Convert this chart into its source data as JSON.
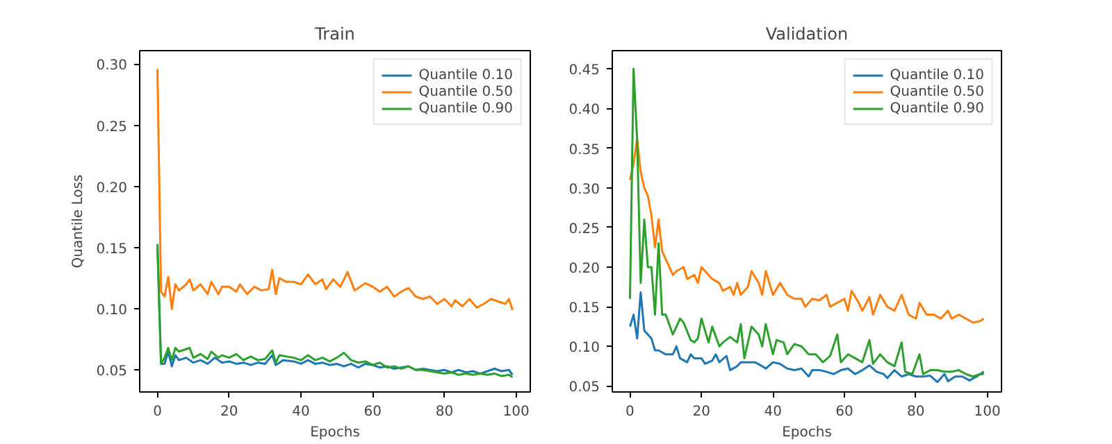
{
  "chart_data": [
    {
      "type": "line",
      "title": "Train",
      "xlabel": "Epochs",
      "ylabel": "Quantile Loss",
      "xlim": [
        -4.95,
        103.95
      ],
      "ylim": [
        0.032,
        0.311
      ],
      "xticks": [
        0,
        20,
        40,
        60,
        80,
        100
      ],
      "yticks": [
        {
          "value": 0.05,
          "label": "0.05"
        },
        {
          "value": 0.1,
          "label": "0.10"
        },
        {
          "value": 0.15,
          "label": "0.15"
        },
        {
          "value": 0.2,
          "label": "0.20"
        },
        {
          "value": 0.25,
          "label": "0.25"
        },
        {
          "value": 0.3,
          "label": "0.30"
        }
      ],
      "grid": false,
      "legend": "top right",
      "series": [
        {
          "name": "Quantile 0.10",
          "color": "#1f77b4",
          "x": [
            0,
            1,
            2,
            3,
            4,
            5,
            6,
            8,
            10,
            12,
            14,
            16,
            18,
            20,
            22,
            24,
            26,
            28,
            30,
            32,
            33,
            35,
            38,
            40,
            42,
            44,
            46,
            48,
            50,
            52,
            54,
            56,
            58,
            60,
            62,
            64,
            66,
            68,
            70,
            72,
            74,
            76,
            78,
            80,
            82,
            84,
            86,
            88,
            90,
            92,
            94,
            96,
            98,
            99
          ],
          "values": [
            0.15,
            0.055,
            0.055,
            0.065,
            0.053,
            0.062,
            0.058,
            0.06,
            0.056,
            0.058,
            0.055,
            0.06,
            0.056,
            0.057,
            0.055,
            0.056,
            0.054,
            0.056,
            0.055,
            0.062,
            0.054,
            0.058,
            0.057,
            0.055,
            0.058,
            0.055,
            0.056,
            0.054,
            0.055,
            0.053,
            0.055,
            0.052,
            0.055,
            0.054,
            0.052,
            0.053,
            0.051,
            0.052,
            0.053,
            0.05,
            0.051,
            0.05,
            0.049,
            0.05,
            0.048,
            0.05,
            0.048,
            0.049,
            0.047,
            0.049,
            0.051,
            0.049,
            0.05,
            0.046
          ]
        },
        {
          "name": "Quantile 0.50",
          "color": "#ff7f0e",
          "x": [
            0,
            1,
            2,
            3,
            4,
            5,
            6,
            8,
            9,
            10,
            12,
            14,
            15,
            17,
            18,
            20,
            22,
            23,
            25,
            27,
            29,
            31,
            32,
            33,
            34,
            36,
            38,
            40,
            42,
            44,
            46,
            47,
            49,
            51,
            53,
            55,
            58,
            60,
            62,
            64,
            66,
            68,
            70,
            72,
            74,
            76,
            78,
            80,
            82,
            83,
            85,
            87,
            89,
            91,
            93,
            95,
            97,
            98,
            99
          ],
          "values": [
            0.296,
            0.114,
            0.11,
            0.126,
            0.1,
            0.12,
            0.115,
            0.12,
            0.124,
            0.115,
            0.12,
            0.112,
            0.122,
            0.112,
            0.118,
            0.118,
            0.114,
            0.12,
            0.112,
            0.118,
            0.115,
            0.116,
            0.132,
            0.112,
            0.125,
            0.122,
            0.122,
            0.12,
            0.128,
            0.12,
            0.124,
            0.116,
            0.124,
            0.118,
            0.13,
            0.115,
            0.121,
            0.118,
            0.114,
            0.118,
            0.11,
            0.114,
            0.117,
            0.11,
            0.108,
            0.11,
            0.104,
            0.108,
            0.102,
            0.107,
            0.102,
            0.108,
            0.101,
            0.104,
            0.108,
            0.106,
            0.104,
            0.108,
            0.099
          ]
        },
        {
          "name": "Quantile 0.90",
          "color": "#2ca02c",
          "x": [
            0,
            1,
            2,
            3,
            4,
            5,
            6,
            7,
            9,
            10,
            12,
            14,
            15,
            17,
            18,
            20,
            22,
            24,
            26,
            28,
            30,
            32,
            33,
            34,
            36,
            38,
            40,
            42,
            44,
            46,
            48,
            50,
            52,
            54,
            56,
            58,
            60,
            62,
            64,
            66,
            68,
            70,
            72,
            74,
            76,
            78,
            80,
            82,
            84,
            86,
            88,
            90,
            92,
            94,
            96,
            98,
            99
          ],
          "values": [
            0.153,
            0.055,
            0.06,
            0.068,
            0.058,
            0.068,
            0.065,
            0.066,
            0.068,
            0.06,
            0.063,
            0.059,
            0.065,
            0.06,
            0.062,
            0.06,
            0.063,
            0.058,
            0.061,
            0.058,
            0.059,
            0.066,
            0.056,
            0.062,
            0.061,
            0.06,
            0.058,
            0.062,
            0.058,
            0.06,
            0.057,
            0.06,
            0.064,
            0.058,
            0.056,
            0.057,
            0.054,
            0.056,
            0.052,
            0.053,
            0.051,
            0.053,
            0.05,
            0.05,
            0.049,
            0.048,
            0.047,
            0.048,
            0.046,
            0.047,
            0.046,
            0.047,
            0.046,
            0.047,
            0.045,
            0.046,
            0.044
          ]
        }
      ]
    },
    {
      "type": "line",
      "title": "Validation",
      "xlabel": "Epochs",
      "xlim": [
        -4.95,
        103.95
      ],
      "ylim": [
        0.0425,
        0.473
      ],
      "xticks": [
        0,
        20,
        40,
        60,
        80,
        100
      ],
      "yticks": [
        {
          "value": 0.05,
          "label": "0.05"
        },
        {
          "value": 0.1,
          "label": "0.10"
        },
        {
          "value": 0.15,
          "label": "0.15"
        },
        {
          "value": 0.2,
          "label": "0.20"
        },
        {
          "value": 0.25,
          "label": "0.25"
        },
        {
          "value": 0.3,
          "label": "0.30"
        },
        {
          "value": 0.35,
          "label": "0.35"
        },
        {
          "value": 0.4,
          "label": "0.40"
        },
        {
          "value": 0.45,
          "label": "0.45"
        }
      ],
      "grid": false,
      "legend": "top right",
      "series": [
        {
          "name": "Quantile 0.10",
          "color": "#1f77b4",
          "x": [
            0,
            1,
            2,
            3,
            4,
            5,
            6,
            7,
            8,
            10,
            12,
            13,
            14,
            16,
            17,
            18,
            20,
            21,
            23,
            24,
            25,
            27,
            28,
            30,
            31,
            33,
            35,
            37,
            38,
            40,
            42,
            44,
            46,
            48,
            50,
            51,
            53,
            55,
            57,
            59,
            61,
            63,
            65,
            67,
            69,
            71,
            72,
            74,
            76,
            78,
            80,
            82,
            84,
            86,
            88,
            89,
            91,
            93,
            95,
            97,
            99
          ],
          "values": [
            0.125,
            0.14,
            0.11,
            0.168,
            0.12,
            0.115,
            0.11,
            0.095,
            0.095,
            0.09,
            0.09,
            0.1,
            0.085,
            0.08,
            0.09,
            0.085,
            0.085,
            0.078,
            0.082,
            0.09,
            0.08,
            0.088,
            0.07,
            0.075,
            0.08,
            0.08,
            0.08,
            0.075,
            0.072,
            0.08,
            0.078,
            0.072,
            0.07,
            0.072,
            0.062,
            0.07,
            0.07,
            0.068,
            0.065,
            0.07,
            0.072,
            0.065,
            0.07,
            0.076,
            0.068,
            0.065,
            0.06,
            0.07,
            0.062,
            0.065,
            0.062,
            0.062,
            0.063,
            0.055,
            0.065,
            0.056,
            0.062,
            0.062,
            0.057,
            0.062,
            0.068
          ]
        },
        {
          "name": "Quantile 0.50",
          "color": "#ff7f0e",
          "x": [
            0,
            1,
            2,
            3,
            4,
            5,
            6,
            7,
            8,
            9,
            10,
            12,
            13,
            15,
            16,
            18,
            19,
            20,
            22,
            23,
            25,
            26,
            28,
            29,
            30,
            31,
            33,
            34,
            36,
            37,
            38,
            40,
            42,
            44,
            46,
            48,
            49,
            51,
            53,
            55,
            56,
            58,
            60,
            61,
            62,
            64,
            65,
            67,
            68,
            70,
            72,
            74,
            76,
            78,
            80,
            81,
            83,
            85,
            87,
            89,
            90,
            92,
            94,
            96,
            98,
            99
          ],
          "values": [
            0.31,
            0.33,
            0.362,
            0.32,
            0.3,
            0.29,
            0.265,
            0.225,
            0.26,
            0.22,
            0.21,
            0.19,
            0.195,
            0.2,
            0.185,
            0.19,
            0.18,
            0.2,
            0.19,
            0.185,
            0.18,
            0.17,
            0.175,
            0.165,
            0.18,
            0.165,
            0.175,
            0.195,
            0.18,
            0.165,
            0.195,
            0.165,
            0.18,
            0.165,
            0.16,
            0.16,
            0.15,
            0.16,
            0.158,
            0.165,
            0.15,
            0.155,
            0.16,
            0.145,
            0.17,
            0.155,
            0.145,
            0.162,
            0.14,
            0.165,
            0.15,
            0.145,
            0.165,
            0.14,
            0.135,
            0.155,
            0.14,
            0.14,
            0.135,
            0.145,
            0.135,
            0.14,
            0.135,
            0.13,
            0.132,
            0.135
          ]
        },
        {
          "name": "Quantile 0.90",
          "color": "#2ca02c",
          "x": [
            0,
            1,
            2,
            3,
            4,
            5,
            6,
            7,
            8,
            9,
            10,
            12,
            14,
            15,
            17,
            18,
            19,
            20,
            22,
            23,
            25,
            26,
            28,
            30,
            31,
            32,
            34,
            36,
            37,
            38,
            40,
            41,
            43,
            44,
            46,
            48,
            50,
            52,
            54,
            56,
            58,
            59,
            61,
            63,
            65,
            67,
            68,
            70,
            72,
            74,
            76,
            77,
            79,
            81,
            82,
            84,
            86,
            88,
            90,
            92,
            94,
            96,
            98,
            99
          ],
          "values": [
            0.16,
            0.45,
            0.36,
            0.18,
            0.26,
            0.2,
            0.2,
            0.14,
            0.23,
            0.14,
            0.14,
            0.115,
            0.135,
            0.13,
            0.108,
            0.105,
            0.11,
            0.135,
            0.105,
            0.125,
            0.1,
            0.105,
            0.112,
            0.105,
            0.128,
            0.085,
            0.125,
            0.115,
            0.1,
            0.128,
            0.09,
            0.108,
            0.105,
            0.09,
            0.103,
            0.1,
            0.09,
            0.09,
            0.08,
            0.088,
            0.115,
            0.08,
            0.09,
            0.085,
            0.08,
            0.108,
            0.078,
            0.09,
            0.08,
            0.075,
            0.105,
            0.068,
            0.065,
            0.09,
            0.065,
            0.07,
            0.07,
            0.068,
            0.068,
            0.07,
            0.065,
            0.062,
            0.065,
            0.065
          ]
        }
      ]
    }
  ]
}
